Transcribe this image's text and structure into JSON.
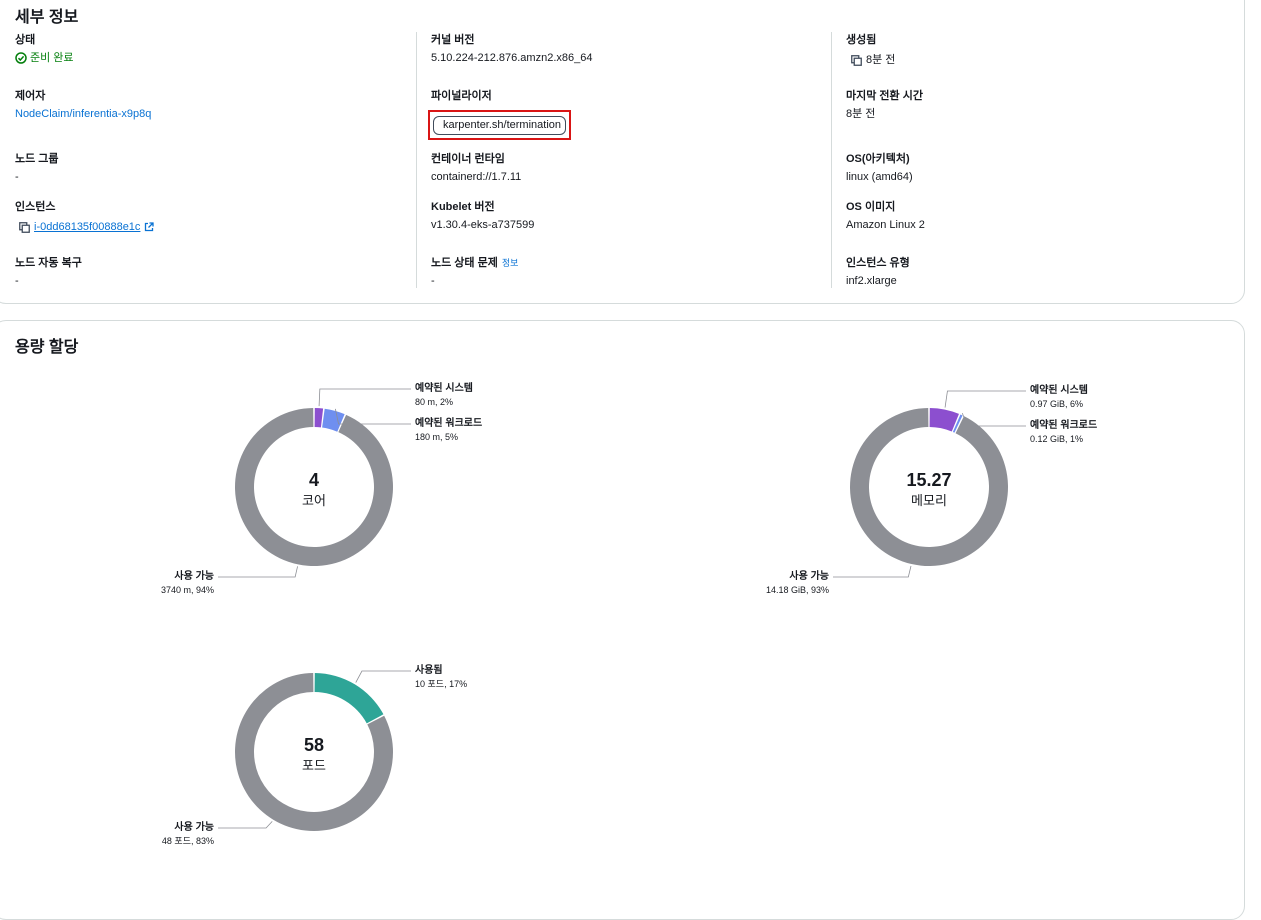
{
  "details": {
    "title": "세부 정보",
    "fields": {
      "status": {
        "label": "상태",
        "value": "준비 완료"
      },
      "kernel": {
        "label": "커널 버전",
        "value": "5.10.224-212.876.amzn2.x86_64"
      },
      "created": {
        "label": "생성됨",
        "value": "8분 전"
      },
      "controller": {
        "label": "제어자",
        "value": "NodeClaim/inferentia-x9p8q"
      },
      "finalizer": {
        "label": "파이널라이저",
        "value": "karpenter.sh/termination"
      },
      "last_transition": {
        "label": "마지막 전환 시간",
        "value": "8분 전"
      },
      "node_group": {
        "label": "노드 그룹",
        "value": "-"
      },
      "container_runtime": {
        "label": "컨테이너 런타임",
        "value": "containerd://1.7.11"
      },
      "os_arch": {
        "label": "OS(아키텍처)",
        "value": "linux (amd64)"
      },
      "instance": {
        "label": "인스턴스",
        "value": "i-0dd68135f00888e1c"
      },
      "kubelet": {
        "label": "Kubelet 버전",
        "value": "v1.30.4-eks-a737599"
      },
      "os_image": {
        "label": "OS 이미지",
        "value": "Amazon Linux 2"
      },
      "auto_repair": {
        "label": "노드 자동 복구",
        "value": "-"
      },
      "health_issues": {
        "label": "노드 상태 문제",
        "info": "정보",
        "value": "-"
      },
      "instance_type": {
        "label": "인스턴스 유형",
        "value": "inf2.xlarge"
      }
    }
  },
  "capacity": {
    "title": "용량 할당",
    "charts": [
      {
        "id": "cpu",
        "center_value": "4",
        "center_unit": "코어",
        "segments": [
          {
            "name": "예약된 시스템",
            "label": "80 m, 2%",
            "value": 80,
            "color": "#8c4fcf"
          },
          {
            "name": "예약된 워크로드",
            "label": "180 m, 5%",
            "value": 180,
            "color": "#6f8ff0"
          },
          {
            "name": "사용 가능",
            "label": "3740 m, 94%",
            "value": 3740,
            "color": "#8d8f95"
          }
        ]
      },
      {
        "id": "memory",
        "center_value": "15.27",
        "center_unit": "메모리",
        "segments": [
          {
            "name": "예약된 시스템",
            "label": "0.97 GiB, 6%",
            "value": 0.97,
            "color": "#8c4fcf"
          },
          {
            "name": "예약된 워크로드",
            "label": "0.12 GiB, 1%",
            "value": 0.12,
            "color": "#6f8ff0"
          },
          {
            "name": "사용 가능",
            "label": "14.18 GiB, 93%",
            "value": 14.18,
            "color": "#8d8f95"
          }
        ]
      },
      {
        "id": "pods",
        "center_value": "58",
        "center_unit": "포드",
        "segments": [
          {
            "name": "사용됨",
            "label": "10 포드, 17%",
            "value": 10,
            "color": "#2ea597"
          },
          {
            "name": "사용 가능",
            "label": "48 포드, 83%",
            "value": 48,
            "color": "#8d8f95"
          }
        ]
      }
    ]
  }
}
